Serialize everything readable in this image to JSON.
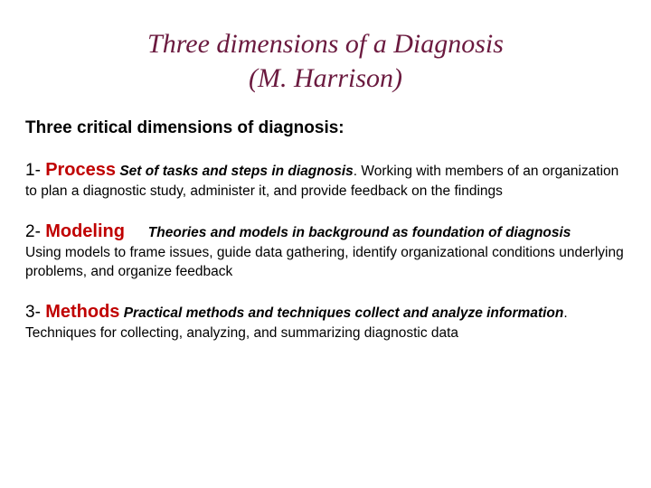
{
  "colors": {
    "title": "#6b1a3f",
    "keyword": "#c00000",
    "text": "#000000",
    "background": "#ffffff"
  },
  "title": {
    "line1": "Three dimensions of a Diagnosis",
    "line2": "(M. Harrison)"
  },
  "subtitle": "Three critical dimensions of diagnosis:",
  "items": [
    {
      "num": "1- ",
      "keyword": "Process",
      "gap": "  ",
      "definition": "Set of tasks and steps in diagnosis",
      "after_def": ". ",
      "body": "Working with members of an organization to plan a diagnostic study, administer it, and provide feedback on the findings"
    },
    {
      "num": "2- ",
      "keyword": "Modeling",
      "gap": "      ",
      "definition": "Theories and models in background as foundation of diagnosis",
      "after_def": " ",
      "body": "Using models to frame issues, guide data gathering, identify organizational conditions underlying problems, and organize feedback"
    },
    {
      "num": "3- ",
      "keyword": "Methods",
      "gap": " ",
      "definition": "Practical methods and techniques collect and analyze information",
      "after_def": ". ",
      "body": "Techniques for collecting, analyzing, and summarizing diagnostic data"
    }
  ]
}
